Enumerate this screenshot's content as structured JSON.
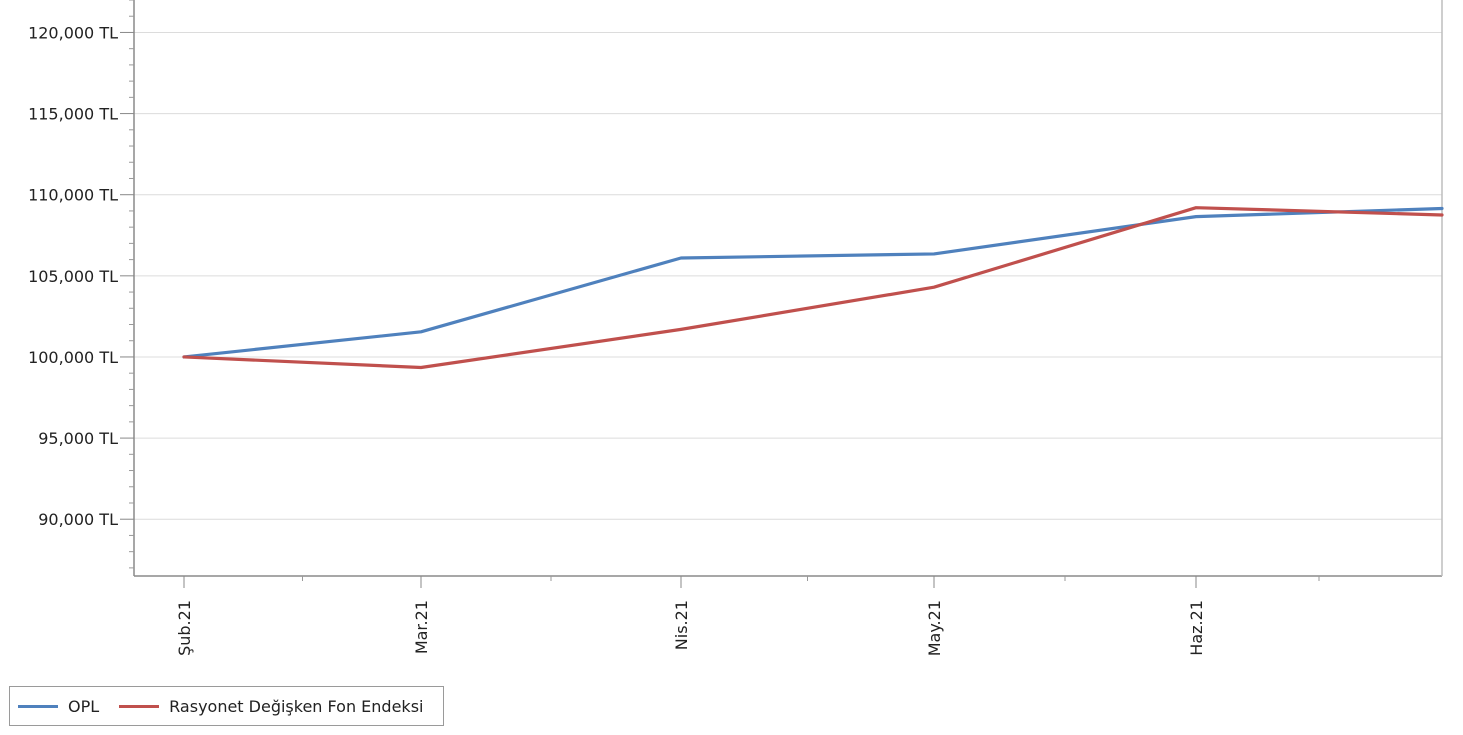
{
  "chart_data": {
    "type": "line",
    "title": "",
    "xlabel": "",
    "ylabel": "",
    "x": [
      "Şub.21",
      "Mar.21",
      "Nis.21",
      "May.21",
      "Haz.21",
      ""
    ],
    "y_ticks": [
      {
        "value": 90000,
        "label": "90,000 TL"
      },
      {
        "value": 95000,
        "label": "95,000 TL"
      },
      {
        "value": 100000,
        "label": "100,000 TL"
      },
      {
        "value": 105000,
        "label": "105,000 TL"
      },
      {
        "value": 110000,
        "label": "110,000 TL"
      },
      {
        "value": 115000,
        "label": "115,000 TL"
      },
      {
        "value": 120000,
        "label": "120,000 TL"
      }
    ],
    "ylim": [
      86500,
      122000
    ],
    "grid": true,
    "legend_position": "bottom-left",
    "series": [
      {
        "name": "OPL",
        "color": "#4f81bd",
        "points": [
          {
            "x": "Şub.21",
            "y": 100000
          },
          {
            "x": "Mar.21",
            "y": 101550
          },
          {
            "x": "Nis.21",
            "y": 106100
          },
          {
            "x": "May.21",
            "y": 106350
          },
          {
            "x": "Haz.21",
            "y": 108650
          },
          {
            "x": "",
            "y": 109150
          }
        ]
      },
      {
        "name": "Rasyonet Değişken Fon Endeksi",
        "color": "#c0504d",
        "points": [
          {
            "x": "Şub.21",
            "y": 100000
          },
          {
            "x": "Mar.21",
            "y": 99350
          },
          {
            "x": "Nis.21",
            "y": 101700
          },
          {
            "x": "May.21",
            "y": 104300
          },
          {
            "x": "Haz.21",
            "y": 109200
          },
          {
            "x": "",
            "y": 108750
          }
        ]
      }
    ]
  }
}
